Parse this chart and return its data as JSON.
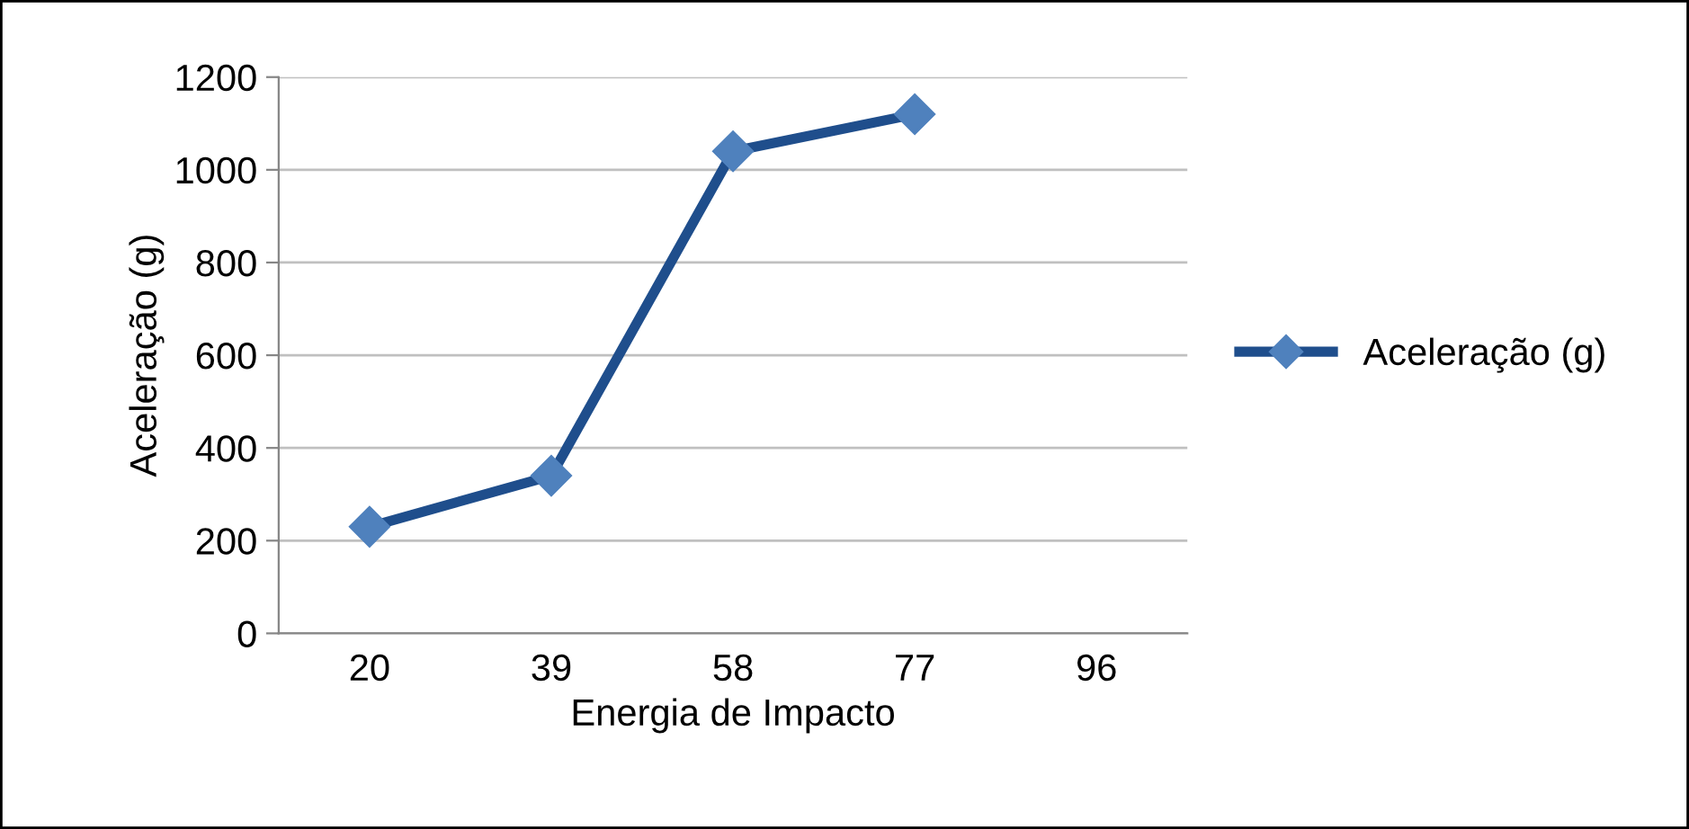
{
  "chart_data": {
    "type": "line",
    "xlabel": "Energia de Impacto",
    "ylabel": "Aceleração (g)",
    "categories": [
      "20",
      "39",
      "58",
      "77",
      "96"
    ],
    "series": [
      {
        "name": "Aceleração (g)",
        "color": "#1f4e8c",
        "colors": [
          "#4f81bd",
          "#4f81bd",
          "#4f81bd",
          "#4f81bd",
          null
        ],
        "values": [
          230,
          340,
          1040,
          1120,
          null
        ]
      }
    ],
    "ylim": [
      0,
      1200
    ],
    "yticks": [
      0,
      200,
      400,
      600,
      800,
      1000,
      1200
    ],
    "grid": "y",
    "legend": "right",
    "marker": "diamond",
    "line_style": "solid"
  }
}
